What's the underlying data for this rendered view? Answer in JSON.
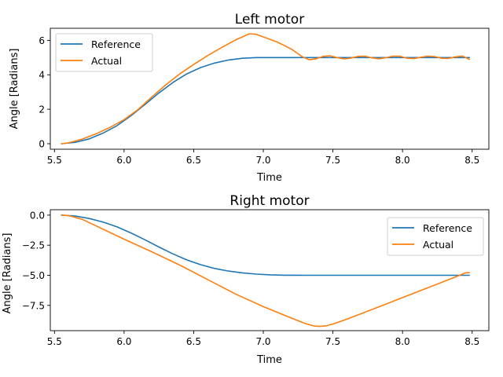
{
  "chart_data": [
    {
      "type": "line",
      "title": "Left motor",
      "xlabel": "Time",
      "ylabel": "Angle [Radians]",
      "xlim": [
        5.47,
        8.62
      ],
      "ylim": [
        -0.32,
        6.7
      ],
      "xticks": [
        5.5,
        6.0,
        6.5,
        7.0,
        7.5,
        8.0,
        8.5
      ],
      "xtick_labels": [
        "5.5",
        "6.0",
        "6.5",
        "7.0",
        "7.5",
        "8.0",
        "8.5"
      ],
      "yticks": [
        0,
        2,
        4,
        6
      ],
      "ytick_labels": [
        "0",
        "2",
        "4",
        "6"
      ],
      "grid": false,
      "legend_position": "upper-left",
      "series": [
        {
          "name": "Reference",
          "color": "#1f77b4",
          "x": [
            5.55,
            5.65,
            5.75,
            5.85,
            5.95,
            6.05,
            6.15,
            6.25,
            6.35,
            6.45,
            6.55,
            6.65,
            6.75,
            6.85,
            6.95,
            7.05,
            7.2,
            7.5,
            8.0,
            8.48
          ],
          "y": [
            0.0,
            0.08,
            0.28,
            0.62,
            1.05,
            1.62,
            2.28,
            2.95,
            3.55,
            4.05,
            4.42,
            4.68,
            4.86,
            4.96,
            5.0,
            5.0,
            5.0,
            5.0,
            5.0,
            5.0
          ]
        },
        {
          "name": "Actual",
          "color": "#ff7f0e",
          "x": [
            5.55,
            5.6,
            5.7,
            5.8,
            5.9,
            6.0,
            6.1,
            6.2,
            6.3,
            6.4,
            6.5,
            6.6,
            6.7,
            6.8,
            6.9,
            6.95,
            7.0,
            7.1,
            7.2,
            7.28,
            7.33,
            7.38,
            7.43,
            7.48,
            7.53,
            7.58,
            7.63,
            7.68,
            7.73,
            7.78,
            7.83,
            7.88,
            7.93,
            7.98,
            8.03,
            8.08,
            8.13,
            8.18,
            8.23,
            8.28,
            8.33,
            8.38,
            8.43,
            8.48
          ],
          "y": [
            0.0,
            0.05,
            0.27,
            0.58,
            0.95,
            1.4,
            1.98,
            2.72,
            3.42,
            4.05,
            4.6,
            5.12,
            5.58,
            6.02,
            6.38,
            6.35,
            6.2,
            5.9,
            5.5,
            5.05,
            4.87,
            4.93,
            5.07,
            5.1,
            5.0,
            4.92,
            4.97,
            5.07,
            5.08,
            4.98,
            4.93,
            4.99,
            5.08,
            5.08,
            4.97,
            4.94,
            5.02,
            5.08,
            5.06,
            4.96,
            4.95,
            5.04,
            5.09,
            4.9
          ]
        }
      ]
    },
    {
      "type": "line",
      "title": "Right motor",
      "xlabel": "Time",
      "ylabel": "Angle [Radians]",
      "xlim": [
        5.47,
        8.62
      ],
      "ylim": [
        -9.6,
        0.45
      ],
      "xticks": [
        5.5,
        6.0,
        6.5,
        7.0,
        7.5,
        8.0,
        8.5
      ],
      "xtick_labels": [
        "5.5",
        "6.0",
        "6.5",
        "7.0",
        "7.5",
        "8.0",
        "8.5"
      ],
      "yticks": [
        0.0,
        -2.5,
        -5.0,
        -7.5
      ],
      "ytick_labels": [
        "0.0",
        "−2.5",
        "−5.0",
        "−7.5"
      ],
      "grid": false,
      "legend_position": "upper-right",
      "series": [
        {
          "name": "Reference",
          "color": "#1f77b4",
          "x": [
            5.55,
            5.65,
            5.75,
            5.85,
            5.95,
            6.05,
            6.15,
            6.25,
            6.35,
            6.45,
            6.55,
            6.65,
            6.75,
            6.85,
            6.95,
            7.05,
            7.15,
            7.3,
            7.5,
            8.0,
            8.48
          ],
          "y": [
            0.0,
            -0.08,
            -0.28,
            -0.58,
            -0.98,
            -1.48,
            -2.05,
            -2.65,
            -3.22,
            -3.72,
            -4.12,
            -4.43,
            -4.65,
            -4.8,
            -4.9,
            -4.96,
            -4.99,
            -5.0,
            -5.0,
            -5.0,
            -5.0
          ]
        },
        {
          "name": "Actual",
          "color": "#ff7f0e",
          "x": [
            5.55,
            5.6,
            5.7,
            5.8,
            5.9,
            6.0,
            6.2,
            6.4,
            6.6,
            6.8,
            7.0,
            7.2,
            7.3,
            7.36,
            7.4,
            7.45,
            7.5,
            7.6,
            7.8,
            8.0,
            8.2,
            8.4,
            8.45,
            8.48
          ],
          "y": [
            0.0,
            -0.03,
            -0.35,
            -0.9,
            -1.45,
            -2.0,
            -3.05,
            -4.15,
            -5.35,
            -6.55,
            -7.6,
            -8.55,
            -9.0,
            -9.2,
            -9.25,
            -9.2,
            -9.05,
            -8.65,
            -7.75,
            -6.85,
            -5.95,
            -5.05,
            -4.8,
            -4.78
          ]
        }
      ]
    }
  ]
}
